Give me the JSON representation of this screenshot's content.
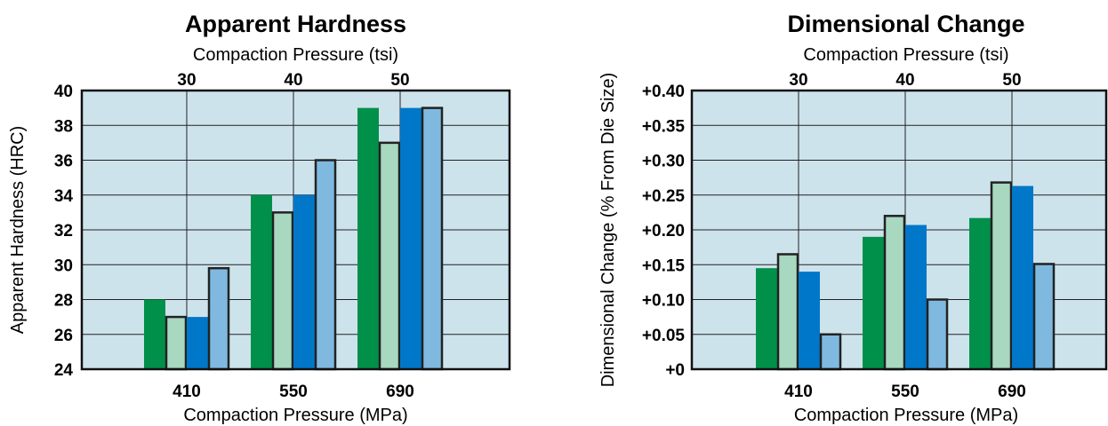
{
  "chart_data": [
    {
      "type": "bar",
      "title": "Apparent Hardness",
      "xlabel": "Compaction Pressure (MPa)",
      "x2label": "Compaction Pressure (tsi)",
      "ylabel": "Apparent Hardness (HRC)",
      "categories": [
        "410",
        "550",
        "690"
      ],
      "top_categories": [
        "30",
        "40",
        "50"
      ],
      "yticks": [
        "24",
        "26",
        "28",
        "30",
        "32",
        "34",
        "36",
        "38",
        "40"
      ],
      "ylim": [
        24,
        40
      ],
      "grid": true,
      "series": [
        {
          "values": [
            28,
            34,
            39
          ],
          "color": "#00904a"
        },
        {
          "values": [
            27,
            33,
            37
          ],
          "color": "#a8d8c0"
        },
        {
          "values": [
            27,
            34,
            39
          ],
          "color": "#0077c8"
        },
        {
          "values": [
            29.8,
            36,
            39
          ],
          "color": "#7fb9e0"
        }
      ]
    },
    {
      "type": "bar",
      "title": "Dimensional Change",
      "xlabel": "Compaction Pressure (MPa)",
      "x2label": "Compaction Pressure (tsi)",
      "ylabel": "Dimensional Change (% From Die Size)",
      "categories": [
        "410",
        "550",
        "690"
      ],
      "top_categories": [
        "30",
        "40",
        "50"
      ],
      "yticks": [
        "+0",
        "+0.05",
        "+0.10",
        "+0.15",
        "+0.20",
        "+0.25",
        "+0.30",
        "+0.35",
        "+0.40"
      ],
      "ylim": [
        0,
        0.4
      ],
      "grid": true,
      "series": [
        {
          "values": [
            0.145,
            0.19,
            0.217
          ],
          "color": "#00904a"
        },
        {
          "values": [
            0.165,
            0.22,
            0.268
          ],
          "color": "#a8d8c0"
        },
        {
          "values": [
            0.14,
            0.207,
            0.263
          ],
          "color": "#0077c8"
        },
        {
          "values": [
            0.05,
            0.1,
            0.151
          ],
          "color": "#7fb9e0"
        }
      ]
    }
  ]
}
